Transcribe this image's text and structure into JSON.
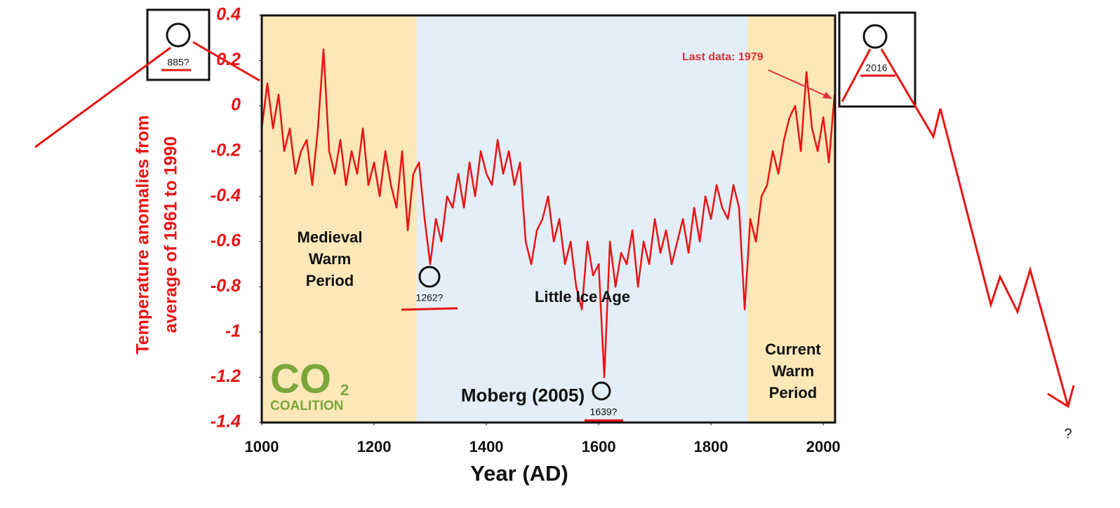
{
  "chart_data": {
    "type": "line",
    "title": "Moberg (2005)",
    "y_label": [
      "Temperature anomalies from",
      "average of 1961 to 1990"
    ],
    "x_label": "Year (AD)",
    "xlim": [
      1000,
      2021
    ],
    "ylim": [
      -1.4,
      0.4
    ],
    "xticks": [
      1000,
      1200,
      1400,
      1600,
      1800,
      2000
    ],
    "yticks": [
      0.4,
      0.2,
      0,
      -0.2,
      -0.4,
      -0.6,
      -0.8,
      -1,
      -1.2,
      -1.4
    ],
    "regions": [
      {
        "label": [
          "Medieval",
          "Warm",
          "Period"
        ],
        "from": 1000,
        "to": 1276,
        "color": "#fbe7b8"
      },
      {
        "label": [
          "Little Ice Age"
        ],
        "from": 1276,
        "to": 1865,
        "color": "#e3eef8"
      },
      {
        "label": [
          "Current",
          "Warm",
          "Period"
        ],
        "from": 1865,
        "to": 2021,
        "color": "#fbe7b8"
      }
    ],
    "series": [
      {
        "name": "Moberg (2005)",
        "color": "#e81414",
        "x": [
          1000,
          1010,
          1020,
          1030,
          1040,
          1050,
          1060,
          1070,
          1080,
          1090,
          1100,
          1110,
          1120,
          1130,
          1140,
          1150,
          1160,
          1170,
          1180,
          1190,
          1200,
          1210,
          1220,
          1230,
          1240,
          1250,
          1260,
          1270,
          1280,
          1290,
          1300,
          1310,
          1320,
          1330,
          1340,
          1350,
          1360,
          1370,
          1380,
          1390,
          1400,
          1410,
          1420,
          1430,
          1440,
          1450,
          1460,
          1470,
          1480,
          1490,
          1500,
          1510,
          1520,
          1530,
          1540,
          1550,
          1560,
          1570,
          1580,
          1590,
          1600,
          1610,
          1620,
          1630,
          1640,
          1650,
          1660,
          1670,
          1680,
          1690,
          1700,
          1710,
          1720,
          1730,
          1740,
          1750,
          1760,
          1770,
          1780,
          1790,
          1800,
          1810,
          1820,
          1830,
          1840,
          1850,
          1860,
          1870,
          1880,
          1890,
          1900,
          1910,
          1920,
          1930,
          1940,
          1950,
          1960,
          1970,
          1980,
          1990,
          2000,
          2010,
          2020
        ],
        "values": [
          -0.1,
          0.1,
          -0.1,
          0.05,
          -0.2,
          -0.1,
          -0.3,
          -0.2,
          -0.15,
          -0.35,
          -0.1,
          0.25,
          -0.2,
          -0.3,
          -0.15,
          -0.35,
          -0.2,
          -0.3,
          -0.1,
          -0.35,
          -0.25,
          -0.4,
          -0.2,
          -0.35,
          -0.45,
          -0.2,
          -0.55,
          -0.3,
          -0.25,
          -0.5,
          -0.7,
          -0.5,
          -0.6,
          -0.4,
          -0.45,
          -0.3,
          -0.45,
          -0.25,
          -0.4,
          -0.2,
          -0.3,
          -0.35,
          -0.15,
          -0.3,
          -0.2,
          -0.35,
          -0.25,
          -0.6,
          -0.7,
          -0.55,
          -0.5,
          -0.4,
          -0.6,
          -0.5,
          -0.7,
          -0.6,
          -0.8,
          -0.9,
          -0.6,
          -0.75,
          -0.7,
          -1.2,
          -0.6,
          -0.8,
          -0.65,
          -0.7,
          -0.55,
          -0.8,
          -0.6,
          -0.7,
          -0.5,
          -0.65,
          -0.55,
          -0.7,
          -0.6,
          -0.5,
          -0.65,
          -0.45,
          -0.6,
          -0.4,
          -0.5,
          -0.35,
          -0.45,
          -0.5,
          -0.35,
          -0.45,
          -0.9,
          -0.5,
          -0.6,
          -0.4,
          -0.35,
          -0.2,
          -0.3,
          -0.15,
          -0.05,
          0,
          -0.2,
          0.15,
          -0.1,
          -0.2,
          -0.05,
          -0.25,
          0.05
        ]
      }
    ],
    "annotations": {
      "last_data": "Last data: 1979",
      "q885": "885?",
      "q1262": "1262?",
      "q1639": "1639?",
      "q2016": "2016",
      "question": "?"
    },
    "logo": {
      "main": "CO",
      "sub": "2",
      "name": "COALITION"
    }
  }
}
